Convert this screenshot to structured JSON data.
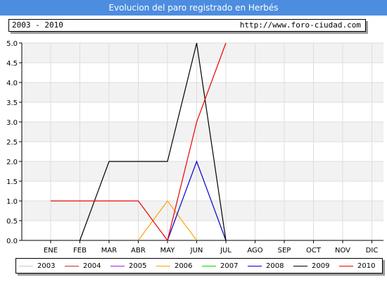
{
  "header": {
    "title": "Evolucion del paro registrado en Herbés",
    "period": "2003 - 2010",
    "url": "http://www.foro-ciudad.com"
  },
  "chart_data": {
    "type": "line",
    "categories": [
      "ENE",
      "FEB",
      "MAR",
      "ABR",
      "MAY",
      "JUN",
      "JUL",
      "AGO",
      "SEP",
      "OCT",
      "NOV",
      "DIC"
    ],
    "ylim": [
      0,
      5
    ],
    "yticks": [
      "0.0",
      "0.5",
      "1.0",
      "1.5",
      "2.0",
      "2.5",
      "3.0",
      "3.5",
      "4.0",
      "4.5",
      "5.0"
    ],
    "grid": true,
    "legend_position": "bottom",
    "series": [
      {
        "name": "2003",
        "color": "#c8c8c8",
        "values": [
          null,
          null,
          null,
          null,
          null,
          null,
          null,
          null,
          null,
          null,
          null,
          null
        ]
      },
      {
        "name": "2004",
        "color": "#c03030",
        "values": [
          null,
          null,
          null,
          null,
          null,
          null,
          null,
          null,
          null,
          null,
          null,
          null
        ]
      },
      {
        "name": "2005",
        "color": "#a020f0",
        "values": [
          null,
          null,
          null,
          null,
          null,
          null,
          null,
          null,
          null,
          null,
          null,
          null
        ]
      },
      {
        "name": "2006",
        "color": "#ffa500",
        "values": [
          null,
          null,
          null,
          0,
          1,
          0,
          null,
          null,
          null,
          null,
          null,
          null
        ]
      },
      {
        "name": "2007",
        "color": "#00dd00",
        "values": [
          null,
          null,
          null,
          null,
          null,
          null,
          null,
          null,
          null,
          null,
          null,
          null
        ]
      },
      {
        "name": "2008",
        "color": "#0000cc",
        "values": [
          null,
          null,
          null,
          null,
          0,
          2,
          0,
          null,
          null,
          null,
          null,
          null
        ]
      },
      {
        "name": "2009",
        "color": "#000000",
        "values": [
          null,
          0,
          2,
          2,
          2,
          5,
          0,
          null,
          null,
          null,
          null,
          null
        ]
      },
      {
        "name": "2010",
        "color": "#ee0000",
        "values": [
          1,
          1,
          1,
          1,
          0,
          3,
          5,
          null,
          null,
          null,
          null,
          null
        ]
      }
    ]
  }
}
